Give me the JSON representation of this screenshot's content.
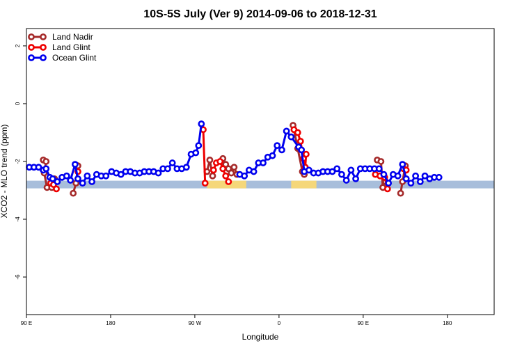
{
  "chart_data": {
    "type": "line",
    "title": "10S-5S July (Ver 9)   2014-09-06 to 2018-12-31",
    "xlabel": "Longitude",
    "ylabel": "XCO2 - MLO trend (ppm)",
    "xlim": [
      90,
      590
    ],
    "ylim": [
      -7.3,
      2.6
    ],
    "x_ticks": [
      {
        "value": 90,
        "label": "90 E"
      },
      {
        "value": 180,
        "label": "180"
      },
      {
        "value": 270,
        "label": "90 W"
      },
      {
        "value": 360,
        "label": "0"
      },
      {
        "value": 450,
        "label": "90 E"
      },
      {
        "value": 540,
        "label": "180"
      }
    ],
    "y_ticks": [
      {
        "value": 2,
        "label": "2"
      },
      {
        "value": 0,
        "label": "0"
      },
      {
        "value": -2,
        "label": "-2"
      },
      {
        "value": -4,
        "label": "-4"
      },
      {
        "value": -6,
        "label": "-6"
      }
    ],
    "legend_position": "top-left",
    "band": {
      "y": -2.8,
      "base_color": "#a8bedb",
      "land_color": "#f5d77a",
      "land_ranges": [
        [
          283,
          325
        ],
        [
          373,
          400
        ]
      ]
    },
    "series": [
      {
        "name": "Land Nadir",
        "color": "#a52a2a",
        "segments": [
          [
            [
              108,
              -1.95
            ],
            [
              111,
              -2.0
            ],
            [
              109,
              -2.4
            ],
            [
              112,
              -2.9
            ]
          ],
          [
            [
              117,
              -2.9
            ],
            [
              120,
              -2.6
            ]
          ],
          [
            [
              140,
              -3.1
            ],
            [
              143,
              -2.75
            ],
            [
              145,
              -2.15
            ]
          ],
          [
            [
              283,
              -2.35
            ],
            [
              286,
              -1.95
            ],
            [
              289,
              -2.5
            ]
          ],
          [
            [
              300,
              -1.9
            ],
            [
              303,
              -2.1
            ],
            [
              306,
              -2.25
            ],
            [
              309,
              -2.4
            ],
            [
              312,
              -2.2
            ],
            [
              315,
              -2.45
            ]
          ],
          [
            [
              375,
              -0.75
            ],
            [
              380,
              -1.55
            ],
            [
              385,
              -2.35
            ],
            [
              387,
              -2.45
            ]
          ],
          [
            [
              465,
              -1.95
            ],
            [
              469,
              -2.0
            ],
            [
              471,
              -2.9
            ],
            [
              474,
              -2.7
            ]
          ],
          [
            [
              490,
              -3.1
            ],
            [
              492,
              -2.7
            ],
            [
              495,
              -2.15
            ]
          ]
        ]
      },
      {
        "name": "Land Glint",
        "color": "#ee0000",
        "segments": [
          [
            [
              116,
              -2.75
            ],
            [
              119,
              -2.8
            ],
            [
              122,
              -2.95
            ]
          ],
          [
            [
              145,
              -2.35
            ]
          ],
          [
            [
              279,
              -0.9
            ],
            [
              281,
              -2.75
            ]
          ],
          [
            [
              290,
              -2.3
            ],
            [
              293,
              -2.05
            ],
            [
              297,
              -2.0
            ],
            [
              300,
              -2.25
            ],
            [
              303,
              -2.5
            ],
            [
              306,
              -2.7
            ]
          ],
          [
            [
              376,
              -0.9
            ],
            [
              380,
              -1.0
            ],
            [
              383,
              -1.3
            ],
            [
              386,
              -1.9
            ],
            [
              388,
              -2.2
            ],
            [
              389,
              -1.75
            ]
          ],
          [
            [
              463,
              -2.45
            ],
            [
              468,
              -2.5
            ],
            [
              473,
              -2.55
            ],
            [
              476,
              -2.95
            ]
          ],
          [
            [
              493,
              -2.25
            ],
            [
              496,
              -2.3
            ]
          ]
        ]
      },
      {
        "name": "Ocean Glint",
        "color": "#0000ee",
        "segments": [
          [
            [
              93,
              -2.2
            ],
            [
              98,
              -2.2
            ],
            [
              103,
              -2.2
            ],
            [
              108,
              -2.3
            ],
            [
              111,
              -2.25
            ],
            [
              115,
              -2.55
            ],
            [
              118,
              -2.6
            ],
            [
              123,
              -2.7
            ],
            [
              128,
              -2.55
            ],
            [
              133,
              -2.5
            ],
            [
              137,
              -2.65
            ],
            [
              142,
              -2.1
            ],
            [
              145,
              -2.6
            ],
            [
              150,
              -2.75
            ],
            [
              155,
              -2.5
            ],
            [
              160,
              -2.7
            ],
            [
              165,
              -2.45
            ],
            [
              170,
              -2.5
            ],
            [
              175,
              -2.5
            ],
            [
              181,
              -2.35
            ],
            [
              186,
              -2.4
            ],
            [
              191,
              -2.45
            ],
            [
              196,
              -2.35
            ],
            [
              201,
              -2.35
            ],
            [
              206,
              -2.4
            ],
            [
              211,
              -2.4
            ],
            [
              216,
              -2.35
            ],
            [
              221,
              -2.35
            ],
            [
              226,
              -2.35
            ],
            [
              231,
              -2.4
            ],
            [
              236,
              -2.25
            ],
            [
              241,
              -2.25
            ],
            [
              246,
              -2.05
            ],
            [
              251,
              -2.25
            ],
            [
              256,
              -2.25
            ],
            [
              261,
              -2.2
            ],
            [
              266,
              -1.75
            ],
            [
              271,
              -1.7
            ],
            [
              274,
              -1.45
            ],
            [
              277,
              -0.7
            ]
          ],
          [
            [
              318,
              -2.45
            ],
            [
              323,
              -2.5
            ],
            [
              328,
              -2.3
            ],
            [
              333,
              -2.35
            ],
            [
              338,
              -2.05
            ],
            [
              343,
              -2.05
            ],
            [
              348,
              -1.85
            ],
            [
              353,
              -1.8
            ],
            [
              358,
              -1.45
            ],
            [
              363,
              -1.6
            ],
            [
              368,
              -0.95
            ],
            [
              373,
              -1.15
            ],
            [
              381,
              -1.5
            ],
            [
              384,
              -1.6
            ],
            [
              387,
              -2.35
            ],
            [
              392,
              -2.3
            ],
            [
              397,
              -2.4
            ],
            [
              402,
              -2.4
            ],
            [
              407,
              -2.35
            ],
            [
              412,
              -2.35
            ],
            [
              417,
              -2.35
            ],
            [
              422,
              -2.25
            ],
            [
              427,
              -2.45
            ],
            [
              432,
              -2.65
            ],
            [
              437,
              -2.3
            ],
            [
              442,
              -2.6
            ],
            [
              447,
              -2.25
            ],
            [
              452,
              -2.25
            ],
            [
              457,
              -2.25
            ],
            [
              462,
              -2.25
            ],
            [
              467,
              -2.25
            ],
            [
              472,
              -2.45
            ],
            [
              477,
              -2.75
            ],
            [
              482,
              -2.45
            ],
            [
              487,
              -2.5
            ],
            [
              492,
              -2.1
            ],
            [
              496,
              -2.6
            ],
            [
              501,
              -2.75
            ],
            [
              506,
              -2.5
            ],
            [
              511,
              -2.7
            ],
            [
              516,
              -2.5
            ],
            [
              521,
              -2.6
            ],
            [
              526,
              -2.55
            ],
            [
              531,
              -2.55
            ]
          ]
        ]
      }
    ]
  }
}
